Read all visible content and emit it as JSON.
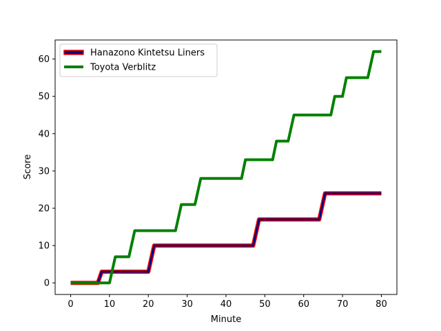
{
  "chart_data": {
    "type": "line",
    "xlabel": "Minute",
    "ylabel": "Score",
    "xlim": [
      -4,
      84
    ],
    "ylim": [
      -3.1,
      65.1
    ],
    "xticks": [
      0,
      10,
      20,
      30,
      40,
      50,
      60,
      70,
      80
    ],
    "yticks": [
      0,
      10,
      20,
      30,
      40,
      50,
      60
    ],
    "grid": false,
    "legend": "top-left",
    "series": [
      {
        "name": "Hanazono Kintetsu Liners",
        "color": "#000080",
        "edge_color": "#ff0000",
        "points": [
          [
            0,
            0
          ],
          [
            7,
            0
          ],
          [
            8,
            3
          ],
          [
            20,
            3
          ],
          [
            21.5,
            10
          ],
          [
            47,
            10
          ],
          [
            48.5,
            17
          ],
          [
            64,
            17
          ],
          [
            65.5,
            24
          ],
          [
            80,
            24
          ]
        ]
      },
      {
        "name": "Toyota Verblitz",
        "color": "#008000",
        "points": [
          [
            0,
            0
          ],
          [
            10,
            0
          ],
          [
            11.5,
            7
          ],
          [
            15,
            7
          ],
          [
            16.5,
            14
          ],
          [
            27,
            14
          ],
          [
            28.5,
            21
          ],
          [
            32,
            21
          ],
          [
            33.5,
            28
          ],
          [
            44,
            28
          ],
          [
            45,
            33
          ],
          [
            52,
            33
          ],
          [
            53,
            38
          ],
          [
            56,
            38
          ],
          [
            57.5,
            45
          ],
          [
            67,
            45
          ],
          [
            68,
            50
          ],
          [
            70,
            50
          ],
          [
            71,
            55
          ],
          [
            76.5,
            55
          ],
          [
            78,
            62
          ],
          [
            80,
            62
          ]
        ]
      }
    ]
  }
}
